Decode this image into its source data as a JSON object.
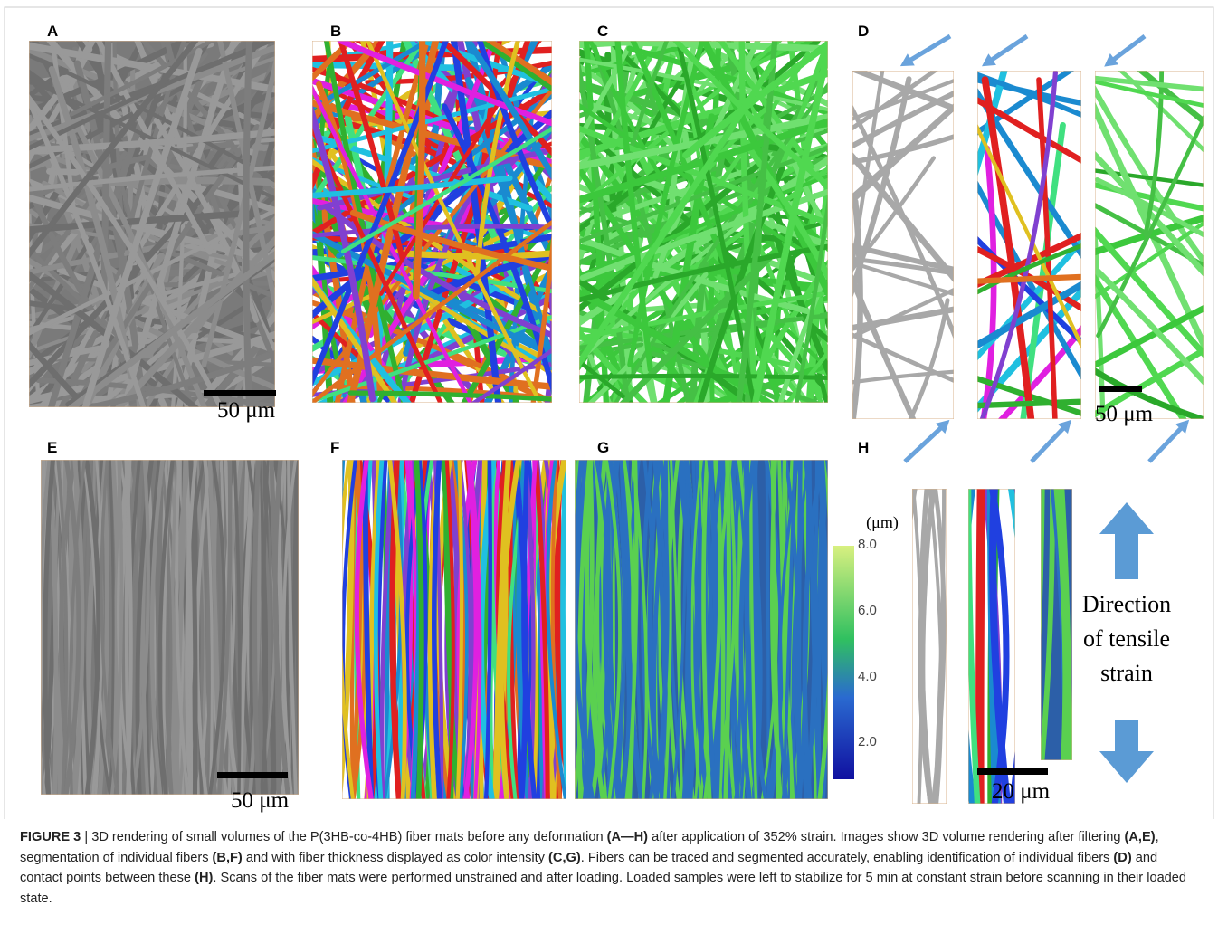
{
  "panels": {
    "A": "A",
    "B": "B",
    "C": "C",
    "D": "D",
    "E": "E",
    "F": "F",
    "G": "G",
    "H": "H"
  },
  "scale_bars": {
    "A": "50 μm",
    "D": "50 μm",
    "E": "50 μm",
    "H": "20 μm"
  },
  "colorbar": {
    "unit": "(μm)",
    "ticks": [
      "8.0",
      "6.0",
      "4.0",
      "2.0"
    ]
  },
  "direction_label": [
    "Direction",
    "of tensile",
    "strain"
  ],
  "caption": [
    {
      "text": "FIGURE 3",
      "bold": true
    },
    {
      "text": " | 3D rendering of small volumes of the P(3HB-co-4HB) fiber mats before any deformation ",
      "bold": false
    },
    {
      "text": "(A—H)",
      "bold": true
    },
    {
      "text": " after application of 352% strain. Images show 3D volume rendering after filtering ",
      "bold": false
    },
    {
      "text": "(A,E)",
      "bold": true
    },
    {
      "text": ", segmentation of individual fibers ",
      "bold": false
    },
    {
      "text": "(B,F)",
      "bold": true
    },
    {
      "text": " and with fiber thickness displayed as color intensity ",
      "bold": false
    },
    {
      "text": "(C,G)",
      "bold": true
    },
    {
      "text": ". Fibers can be traced and segmented accurately, enabling identification of individual fibers ",
      "bold": false
    },
    {
      "text": "(D)",
      "bold": true
    },
    {
      "text": " and contact points between these ",
      "bold": false
    },
    {
      "text": "(H)",
      "bold": true
    },
    {
      "text": ". Scans of the fiber mats were performed unstrained and after loading. Loaded samples were left to stabilize for 5 min at constant strain before scanning in their loaded state.",
      "bold": false
    }
  ]
}
